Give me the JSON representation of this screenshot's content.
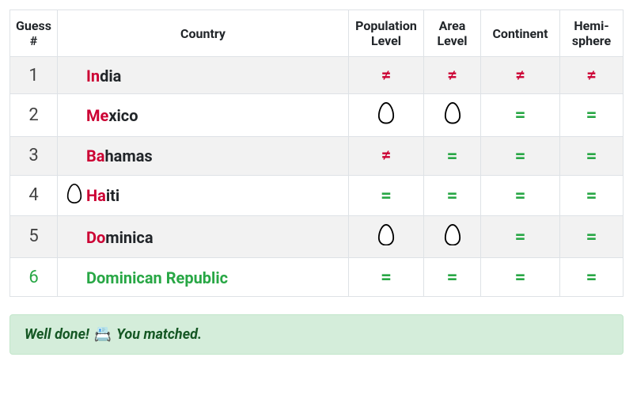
{
  "columns": {
    "guess": "Guess #",
    "country": "Country",
    "population": "Population Level",
    "area": "Area Level",
    "continent": "Continent",
    "hemisphere": "Hemi-sphere"
  },
  "symbols": {
    "equal": "=",
    "not_equal": "≠"
  },
  "colors": {
    "red": "#cc0033",
    "green": "#28a745",
    "banner_bg": "#d4edda",
    "banner_border": "#c3e6cb",
    "banner_text": "#155724",
    "row_stripe": "#f2f2f2",
    "border": "#dee2e6"
  },
  "rows": [
    {
      "num": "1",
      "prefix": "In",
      "rest": "dia",
      "winner": false,
      "has_egg_before": false,
      "population": "neq",
      "area": "neq",
      "continent": "neq",
      "hemisphere": "neq"
    },
    {
      "num": "2",
      "prefix": "Me",
      "rest": "xico",
      "winner": false,
      "has_egg_before": false,
      "population": "egg",
      "area": "egg",
      "continent": "eq",
      "hemisphere": "eq"
    },
    {
      "num": "3",
      "prefix": "Ba",
      "rest": "hamas",
      "winner": false,
      "has_egg_before": false,
      "population": "neq",
      "area": "eq",
      "continent": "eq",
      "hemisphere": "eq"
    },
    {
      "num": "4",
      "prefix": "Ha",
      "rest": "iti",
      "winner": false,
      "has_egg_before": true,
      "population": "eq",
      "area": "eq",
      "continent": "eq",
      "hemisphere": "eq"
    },
    {
      "num": "5",
      "prefix": "Do",
      "rest": "minica",
      "winner": false,
      "has_egg_before": false,
      "population": "egg",
      "area": "egg",
      "continent": "eq",
      "hemisphere": "eq"
    },
    {
      "num": "6",
      "prefix": "Do",
      "rest": "minican Republic",
      "winner": true,
      "has_egg_before": false,
      "population": "eq",
      "area": "eq",
      "continent": "eq",
      "hemisphere": "eq"
    }
  ],
  "banner": {
    "text_before": "Well done!",
    "text_after": "You matched."
  }
}
